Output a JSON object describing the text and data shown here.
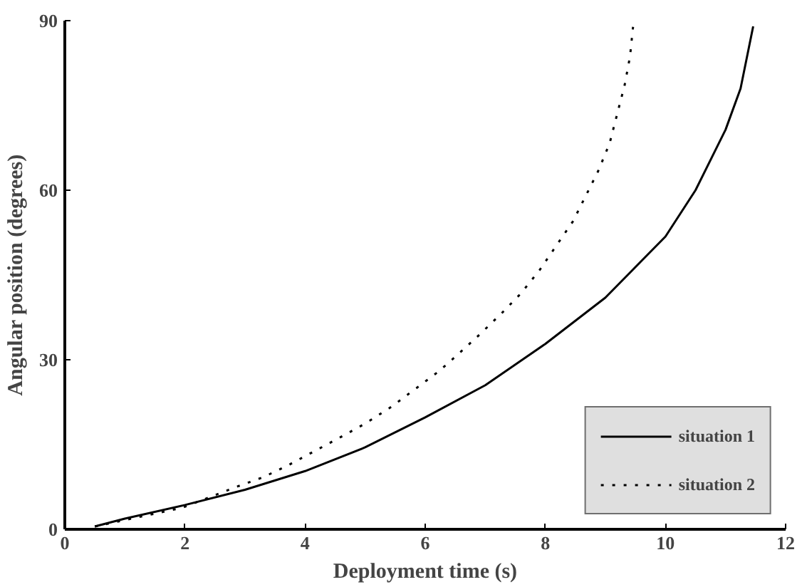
{
  "chart_data": {
    "type": "line",
    "xlabel": "Deployment time (s)",
    "ylabel": "Angular position (degrees)",
    "xlim": [
      0,
      12
    ],
    "ylim": [
      0,
      90
    ],
    "xticks": [
      0,
      2,
      4,
      6,
      8,
      10,
      12
    ],
    "yticks": [
      0,
      30,
      60,
      90
    ],
    "grid": false,
    "legend": "bottom right",
    "series": [
      {
        "name": "situation 1",
        "color": "#000000",
        "line_style": "solid",
        "x": [
          0.5,
          1,
          2,
          3,
          4,
          5,
          6,
          7,
          8,
          9,
          10,
          10.5,
          11,
          11.25,
          11.46
        ],
        "values": [
          0.5,
          1.9,
          4.3,
          7,
          10.3,
          14.5,
          19.8,
          25.5,
          32.8,
          41,
          51.8,
          60,
          70.7,
          78,
          89
        ]
      },
      {
        "name": "situation 2",
        "color": "#000000",
        "line_style": "dotted",
        "x": [
          0.5,
          1.95,
          2.88,
          3.3,
          3.73,
          4.59,
          5.0,
          5.44,
          6.22,
          6.54,
          6.9,
          7.27,
          7.59,
          7.9,
          8.46,
          8.88,
          9.07,
          9.32,
          9.41,
          9.46
        ],
        "values": [
          0.5,
          3.8,
          7.6,
          9.2,
          11.4,
          16.3,
          18.7,
          21.7,
          27.9,
          30.9,
          34.4,
          38.2,
          41.7,
          45.8,
          54.5,
          63.4,
          68.3,
          78.6,
          83.7,
          88.9
        ]
      }
    ]
  }
}
